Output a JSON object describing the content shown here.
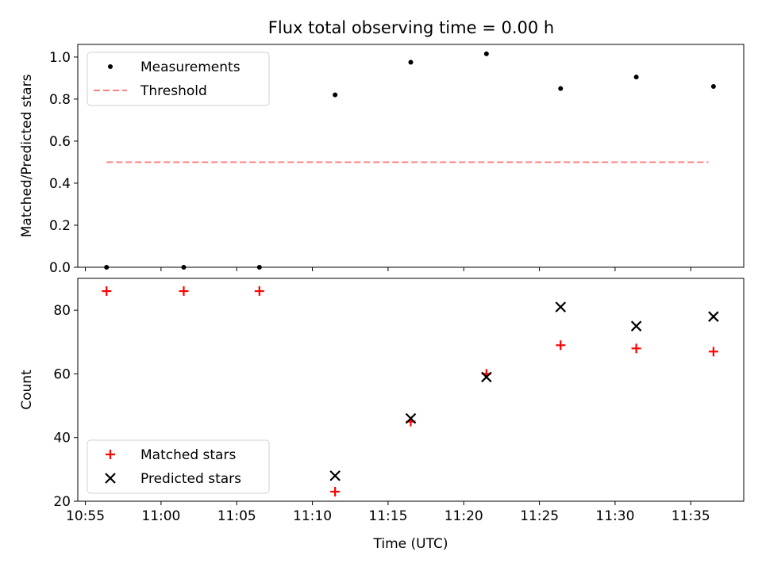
{
  "chart_data": [
    {
      "type": "scatter",
      "title": "Flux total observing time = 0.00 h",
      "xlabel": "",
      "ylabel": "Matched/Predicted stars",
      "ylim": [
        0.0,
        1.06
      ],
      "yticks": [
        "0.0",
        "0.2",
        "0.4",
        "0.6",
        "0.8",
        "1.0"
      ],
      "ytick_values": [
        0.0,
        0.2,
        0.4,
        0.6,
        0.8,
        1.0
      ],
      "legend_position": "upper-left",
      "series": [
        {
          "name": "Measurements",
          "marker": "dot",
          "color": "#000000",
          "x": [
            "10:56:24",
            "11:01:30",
            "11:06:30",
            "11:11:30",
            "11:16:30",
            "11:21:30",
            "11:26:24",
            "11:31:24",
            "11:36:30"
          ],
          "values": [
            0.0,
            0.0,
            0.0,
            0.82,
            0.975,
            1.015,
            0.85,
            0.905,
            0.86
          ]
        },
        {
          "name": "Threshold",
          "marker": "dashed-line",
          "color": "#ff7f7f",
          "x": [
            "10:56:24",
            "11:36:10"
          ],
          "values": [
            0.5,
            0.5
          ]
        }
      ]
    },
    {
      "type": "scatter",
      "title": "",
      "xlabel": "Time (UTC)",
      "ylabel": "Count",
      "ylim": [
        20,
        90
      ],
      "yticks": [
        "20",
        "40",
        "60",
        "80"
      ],
      "ytick_values": [
        20,
        40,
        60,
        80
      ],
      "legend_position": "lower-left",
      "series": [
        {
          "name": "Matched stars",
          "marker": "plus",
          "color": "#ff0000",
          "x": [
            "10:56:24",
            "11:01:30",
            "11:06:30",
            "11:11:30",
            "11:16:30",
            "11:21:30",
            "11:26:24",
            "11:31:24",
            "11:36:30"
          ],
          "values": [
            86,
            86,
            86,
            23,
            45,
            60,
            69,
            68,
            67
          ]
        },
        {
          "name": "Predicted stars",
          "marker": "x",
          "color": "#000000",
          "x": [
            "11:11:30",
            "11:16:30",
            "11:21:30",
            "11:26:24",
            "11:31:24",
            "11:36:30"
          ],
          "values": [
            28,
            46,
            59,
            81,
            75,
            78
          ]
        }
      ]
    }
  ],
  "x_axis": {
    "range": [
      "10:54:30",
      "11:38:30"
    ],
    "ticks": [
      "10:55",
      "11:00",
      "11:05",
      "11:10",
      "11:15",
      "11:20",
      "11:25",
      "11:30",
      "11:35"
    ]
  }
}
